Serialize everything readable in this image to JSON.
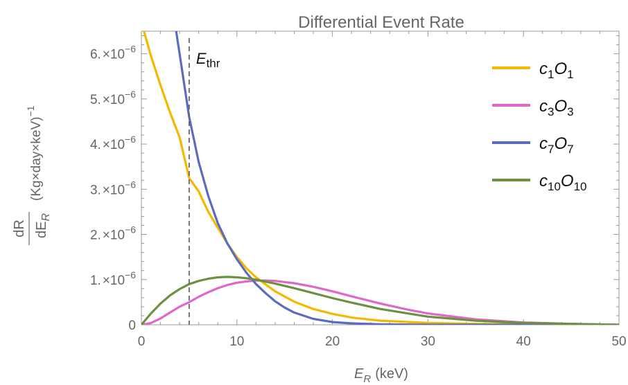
{
  "chart_data": {
    "type": "line",
    "title": "Differential Event Rate",
    "xlabel": "",
    "ylabel": "",
    "xlim": [
      0,
      50
    ],
    "ylim": [
      0,
      6.5e-06
    ],
    "x_ticks": [
      "0",
      "10",
      "20",
      "30",
      "40",
      "50"
    ],
    "y_ticks": [
      {
        "value": 0,
        "label": "0"
      },
      {
        "value": 1e-06,
        "mant": "1.",
        "exp": "−6"
      },
      {
        "value": 2e-06,
        "mant": "2.",
        "exp": "−6"
      },
      {
        "value": 3e-06,
        "mant": "3.",
        "exp": "−6"
      },
      {
        "value": 4e-06,
        "mant": "4.",
        "exp": "−6"
      },
      {
        "value": 5e-06,
        "mant": "5.",
        "exp": "−6"
      },
      {
        "value": 6e-06,
        "mant": "6.",
        "exp": "−6"
      }
    ],
    "x_label": {
      "var": "E",
      "sub": "R",
      "unit": "(keV)"
    },
    "y_label": {
      "num": "dR",
      "den": "dE",
      "den_sub": "R",
      "unit": "(Kg×day×keV)",
      "exp": "−1"
    },
    "threshold": {
      "x": 5,
      "label": "E",
      "sub": "thr"
    },
    "legend_position": "top-right",
    "series": [
      {
        "name": "c1O1",
        "c_sub": "1",
        "o_sub": "1",
        "color": "#F5B800",
        "x": [
          0,
          1,
          2,
          3,
          4,
          5,
          6,
          7,
          8,
          9,
          10,
          11,
          12,
          14,
          16,
          18,
          20,
          22,
          25,
          30,
          35,
          40,
          45,
          50
        ],
        "y": [
          6.7e-06,
          5.95e-06,
          5.3e-06,
          4.7e-06,
          4.15e-06,
          3.25e-06,
          2.95e-06,
          2.5e-06,
          2.15e-06,
          1.8e-06,
          1.5e-06,
          1.25e-06,
          1.05e-06,
          7.4e-07,
          5.1e-07,
          3.5e-07,
          2.4e-07,
          1.6e-07,
          9e-08,
          4e-08,
          2e-08,
          1e-08,
          5e-09,
          0
        ]
      },
      {
        "name": "c3O3",
        "c_sub": "3",
        "o_sub": "3",
        "color": "#E066C8",
        "x": [
          0,
          1,
          2,
          3,
          4,
          5,
          6,
          7,
          8,
          9,
          10,
          11,
          12,
          13,
          14,
          16,
          18,
          20,
          22,
          25,
          28,
          30,
          35,
          40,
          45,
          50
        ],
        "y": [
          0,
          4e-08,
          1.4e-07,
          2.7e-07,
          4e-07,
          5e-07,
          6.2e-07,
          7.2e-07,
          8.1e-07,
          8.8e-07,
          9.3e-07,
          9.6e-07,
          9.8e-07,
          9.8e-07,
          9.7e-07,
          9.2e-07,
          8.4e-07,
          7.4e-07,
          6.3e-07,
          4.7e-07,
          3.3e-07,
          2.5e-07,
          1.2e-07,
          5e-08,
          2e-08,
          0
        ]
      },
      {
        "name": "c7O7",
        "c_sub": "7",
        "o_sub": "7",
        "color": "#5B6BBF",
        "x": [
          3.5,
          4,
          5,
          6,
          7,
          8,
          9,
          10,
          11,
          12,
          13,
          14,
          15,
          16,
          18,
          20,
          22,
          25,
          30,
          35,
          40,
          50
        ],
        "y": [
          6.7e-06,
          6e-06,
          4.6e-06,
          3.6e-06,
          2.85e-06,
          2.25e-06,
          1.8e-06,
          1.45e-06,
          1.15e-06,
          9e-07,
          7e-07,
          5.2e-07,
          3.8e-07,
          2.7e-07,
          1.3e-07,
          6e-08,
          3e-08,
          1e-08,
          0,
          0,
          0,
          0
        ]
      },
      {
        "name": "c10O10",
        "c_sub": "10",
        "o_sub": "10",
        "color": "#6B9140",
        "x": [
          0,
          1,
          2,
          3,
          4,
          5,
          6,
          7,
          8,
          9,
          10,
          11,
          12,
          14,
          16,
          18,
          20,
          22,
          25,
          30,
          35,
          40,
          45,
          50
        ],
        "y": [
          0,
          2.5e-07,
          4.7e-07,
          6.5e-07,
          7.9e-07,
          9e-07,
          9.7e-07,
          1.02e-06,
          1.05e-06,
          1.06e-06,
          1.05e-06,
          1.03e-06,
          1e-06,
          9.1e-07,
          8.1e-07,
          7e-07,
          5.9e-07,
          4.9e-07,
          3.5e-07,
          1.8e-07,
          9e-08,
          4e-08,
          2e-08,
          0
        ]
      }
    ]
  }
}
